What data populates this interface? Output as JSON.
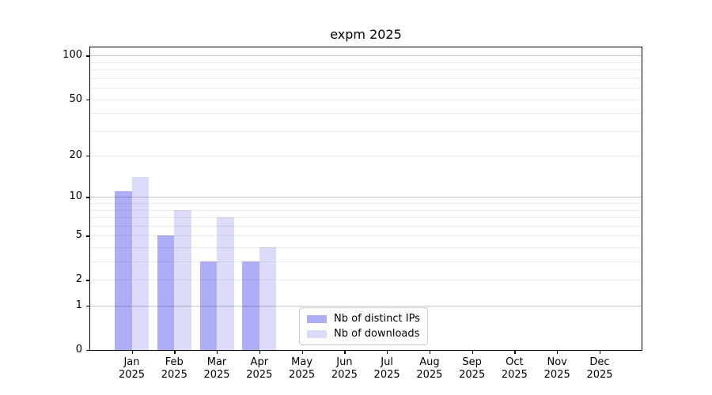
{
  "chart_data": {
    "type": "bar",
    "title": "expm 2025",
    "year_label": "2025",
    "categories": [
      "Jan",
      "Feb",
      "Mar",
      "Apr",
      "May",
      "Jun",
      "Jul",
      "Aug",
      "Sep",
      "Oct",
      "Nov",
      "Dec"
    ],
    "series": [
      {
        "name": "Nb of distinct IPs",
        "color": "#aeaef7",
        "values": [
          11,
          5,
          3,
          3,
          0,
          0,
          0,
          0,
          0,
          0,
          0,
          0
        ]
      },
      {
        "name": "Nb of downloads",
        "color": "#dcdcfa",
        "values": [
          14,
          8,
          7,
          4,
          0,
          0,
          0,
          0,
          0,
          0,
          0,
          0
        ]
      }
    ],
    "yscale": "log10(1+x)",
    "ylim": [
      0,
      113.8
    ],
    "yticks": [
      0,
      1,
      2,
      5,
      10,
      20,
      50,
      100
    ],
    "major_gridlines": [
      1,
      10,
      100
    ],
    "minor_gridlines": [
      2,
      3,
      4,
      5,
      6,
      7,
      8,
      9,
      20,
      30,
      40,
      50,
      60,
      70,
      80,
      90
    ],
    "grid": "horizontal",
    "legend_position": "lower center-right inside plot",
    "colors": {
      "axis": "#000000",
      "grid_major": "#c8c8c8",
      "grid_minor": "#ececec",
      "background": "#ffffff"
    }
  }
}
